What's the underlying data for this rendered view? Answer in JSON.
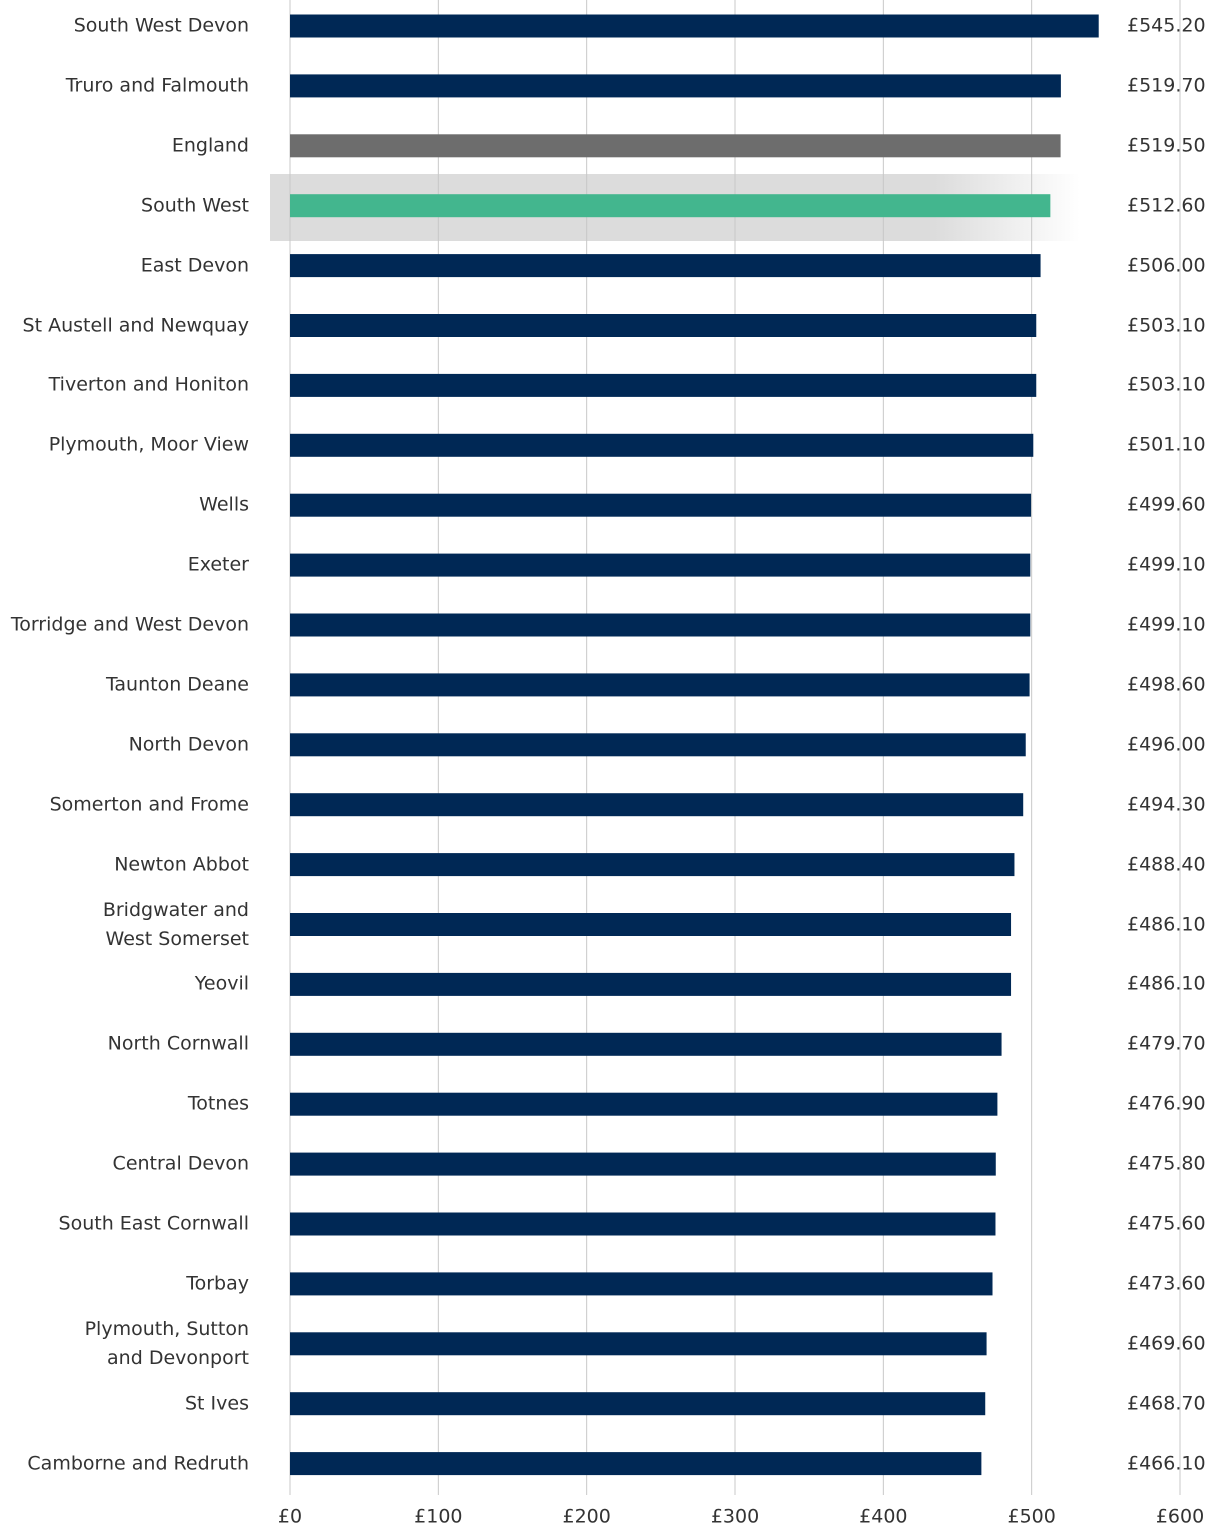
{
  "chart_data": {
    "type": "bar",
    "orientation": "horizontal",
    "categories": [
      "South West Devon",
      "Truro and Falmouth",
      "England",
      "South West",
      "East Devon",
      "St Austell and Newquay",
      "Tiverton and Honiton",
      "Plymouth, Moor View",
      "Wells",
      "Exeter",
      "Torridge and West Devon",
      "Taunton Deane",
      "North Devon",
      "Somerton and Frome",
      "Newton Abbot",
      "Bridgwater and\nWest Somerset",
      "Yeovil",
      "North Cornwall",
      "Totnes",
      "Central Devon",
      "South East Cornwall",
      "Torbay",
      "Plymouth, Sutton\nand Devonport",
      "St Ives",
      "Camborne and Redruth"
    ],
    "values": [
      545.2,
      519.7,
      519.5,
      512.6,
      506.0,
      503.1,
      503.1,
      501.1,
      499.6,
      499.1,
      499.1,
      498.6,
      496.0,
      494.3,
      488.4,
      486.1,
      486.1,
      479.7,
      476.9,
      475.8,
      475.6,
      473.6,
      469.6,
      468.7,
      466.1
    ],
    "value_labels": [
      "£545.20",
      "£519.70",
      "£519.50",
      "£512.60",
      "£506.00",
      "£503.10",
      "£503.10",
      "£501.10",
      "£499.60",
      "£499.10",
      "£499.10",
      "£498.60",
      "£496.00",
      "£494.30",
      "£488.40",
      "£486.10",
      "£486.10",
      "£479.70",
      "£476.90",
      "£475.80",
      "£475.60",
      "£473.60",
      "£469.60",
      "£468.70",
      "£466.10"
    ],
    "colors": [
      "#002855",
      "#002855",
      "#6d6d6d",
      "#43b68e",
      "#002855",
      "#002855",
      "#002855",
      "#002855",
      "#002855",
      "#002855",
      "#002855",
      "#002855",
      "#002855",
      "#002855",
      "#002855",
      "#002855",
      "#002855",
      "#002855",
      "#002855",
      "#002855",
      "#002855",
      "#002855",
      "#002855",
      "#002855",
      "#002855"
    ],
    "xlim": [
      0,
      600
    ],
    "xticks": [
      {
        "value": 0,
        "label": "£0"
      },
      {
        "value": 100,
        "label": "£100"
      },
      {
        "value": 200,
        "label": "£200"
      },
      {
        "value": 300,
        "label": "£300"
      },
      {
        "value": 400,
        "label": "£400"
      },
      {
        "value": 500,
        "label": "£500"
      },
      {
        "value": 600,
        "label": "£600"
      }
    ],
    "grid": true
  }
}
